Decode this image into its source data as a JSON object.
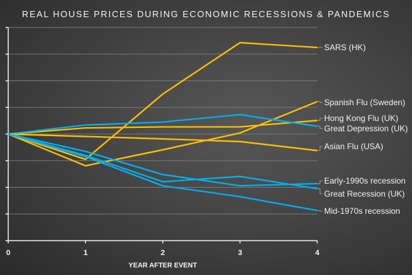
{
  "chart_data": {
    "type": "line",
    "title": "REAL HOUSE PRICES DURING ECONOMIC RECESSIONS & PANDEMICS",
    "xlabel": "YEAR AFTER EVENT",
    "ylabel": "",
    "x": [
      0,
      1,
      2,
      3,
      4
    ],
    "xlim": [
      0,
      4
    ],
    "ylim": [
      -40,
      40
    ],
    "y_ticks": [
      -40,
      -30,
      -20,
      -10,
      0,
      10,
      20,
      30,
      40
    ],
    "y_tick_labels_shown": false,
    "grid": true,
    "legend": "direct labels at right",
    "colors": {
      "pandemic": "#ffc000",
      "recession": "#00b0f0",
      "text": "#f2f2f2",
      "grid": "#777777"
    },
    "series": [
      {
        "name": "SARS (HK)",
        "group": "pandemic",
        "values": [
          0,
          -9.5,
          15,
          34.3,
          32.5
        ]
      },
      {
        "name": "Spanish Flu (Sweden)",
        "group": "pandemic",
        "values": [
          0,
          -11.9,
          -5.9,
          0.4,
          12.2
        ]
      },
      {
        "name": "Hong Kong Flu (UK)",
        "group": "pandemic",
        "values": [
          0,
          2.3,
          2.7,
          2.7,
          5.1
        ]
      },
      {
        "name": "Great Depression (UK)",
        "group": "recession",
        "values": [
          0,
          3.4,
          4.5,
          7.3,
          2.9
        ]
      },
      {
        "name": "Asian Flu (USA)",
        "group": "pandemic",
        "values": [
          0,
          -0.9,
          -1.8,
          -2.8,
          -6.2
        ]
      },
      {
        "name": "Early-1990s recession",
        "group": "recession",
        "values": [
          0,
          -6.5,
          -15.2,
          -19.4,
          -18.6
        ]
      },
      {
        "name": "Great Recession (UK)",
        "group": "recession",
        "values": [
          0,
          -8,
          -17.9,
          -15.9,
          -20.5
        ]
      },
      {
        "name": "Mid-1970s recession",
        "group": "recession",
        "values": [
          0,
          -8.5,
          -19.4,
          -23.5,
          -28.7
        ]
      }
    ]
  }
}
